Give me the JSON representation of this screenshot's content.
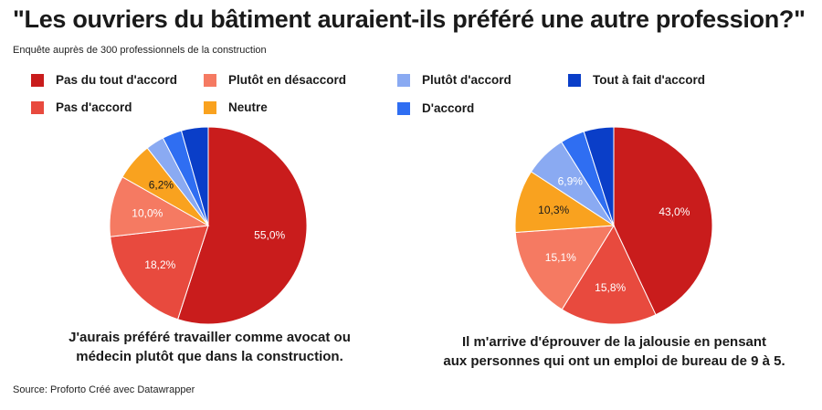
{
  "title": "\"Les ouvriers du bâtiment auraient-ils préféré une autre profession?\"",
  "subtitle": "Enquête auprès de 300 professionnels de la construction",
  "legend": [
    {
      "label": "Pas du tout d'accord",
      "color": "#c91c1c"
    },
    {
      "label": "Pas d'accord",
      "color": "#e84a3e"
    },
    {
      "label": "Plutôt en désaccord",
      "color": "#f57a62"
    },
    {
      "label": "Neutre",
      "color": "#f9a21f"
    },
    {
      "label": "Plutôt d'accord",
      "color": "#8aaaf2"
    },
    {
      "label": "D'accord",
      "color": "#2f6ef2"
    },
    {
      "label": "Tout à fait d'accord",
      "color": "#0a3ec8"
    }
  ],
  "chart_data": [
    {
      "type": "pie",
      "caption_line1": "J'aurais préféré travailler comme avocat ou",
      "caption_line2": "médecin plutôt que dans la construction.",
      "labels": [
        "Pas du tout d'accord",
        "Pas d'accord",
        "Plutôt en désaccord",
        "Neutre",
        "Plutôt d'accord",
        "D'accord",
        "Tout à fait d'accord"
      ],
      "values": [
        55.0,
        18.2,
        10.0,
        6.2,
        3.0,
        3.2,
        4.4
      ],
      "value_labels": [
        "55,0%",
        "18,2%",
        "10,0%",
        "6,2%",
        "",
        "",
        ""
      ]
    },
    {
      "type": "pie",
      "caption_line1": "Il m'arrive d'éprouver de la jalousie en pensant",
      "caption_line2": "aux personnes qui ont un emploi de bureau de 9 à 5.",
      "labels": [
        "Pas du tout d'accord",
        "Pas d'accord",
        "Plutôt en désaccord",
        "Neutre",
        "Plutôt d'accord",
        "D'accord",
        "Tout à fait d'accord"
      ],
      "values": [
        43.0,
        15.8,
        15.1,
        10.3,
        6.9,
        4.0,
        4.9
      ],
      "value_labels": [
        "43,0%",
        "15,8%",
        "15,1%",
        "10,3%",
        "6,9%",
        "",
        ""
      ]
    }
  ],
  "source": "Source: Proforto Créé avec Datawrapper"
}
